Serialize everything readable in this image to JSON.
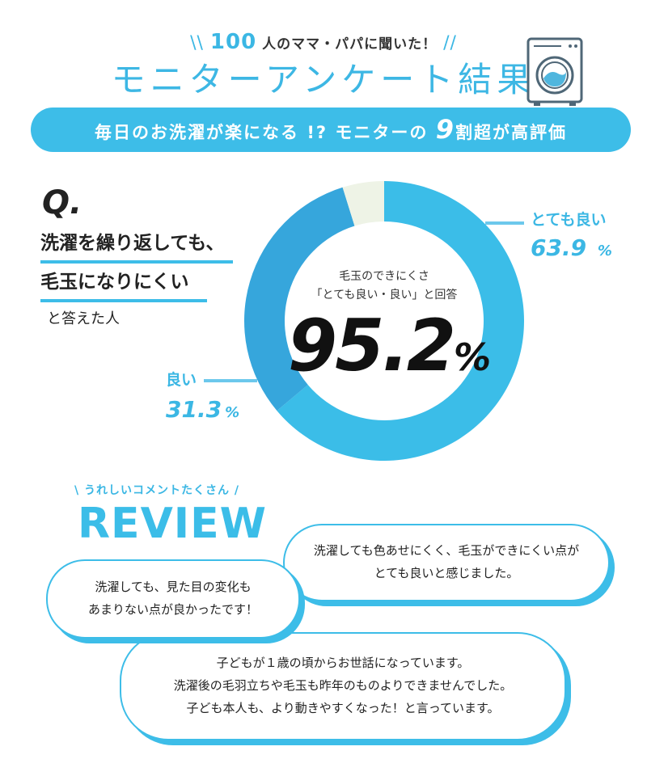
{
  "header": {
    "intro_number": "100",
    "intro_text": "人のママ・パパに聞いた！",
    "title": "モニターアンケート結果",
    "banner_pre": "毎日のお洗濯が楽になる !? モニターの",
    "banner_num": "9",
    "banner_post": "割超が高評価",
    "icon": "washing-machine-icon"
  },
  "question": {
    "q_mark": "Q.",
    "line1": "洗濯を繰り返しても、",
    "line2": "毛玉になりにくい",
    "line3": "と答えた人"
  },
  "chart_data": {
    "type": "pie",
    "donut": true,
    "categories": [
      "とても良い",
      "良い",
      ""
    ],
    "values": [
      63.9,
      31.3,
      4.8
    ],
    "colors": [
      "#3bbde8",
      "#36a6dc",
      "#eef3e6"
    ],
    "labels": [
      {
        "name": "とても良い",
        "value": "63.9",
        "unit": "%"
      },
      {
        "name": "良い",
        "value": "31.3",
        "unit": "%"
      }
    ],
    "center": {
      "line1": "毛玉のできにくさ",
      "line2": "「とても良い・良い」と回答",
      "value": "95.2",
      "unit": "%"
    }
  },
  "review": {
    "subtitle": "\\ うれしいコメントたくさん /",
    "title": "REVIEW",
    "comments": [
      {
        "line1": "洗濯しても色あせにくく、毛玉ができにくい点が",
        "line2": "とても良いと感じました。"
      },
      {
        "line1": "洗濯しても、見た目の変化も",
        "line2": "あまりない点が良かったです！"
      },
      {
        "line1": "子どもが１歳の頃からお世話になっています。",
        "line2": "洗濯後の毛羽立ちや毛玉も昨年のものよりできませんでした。",
        "line3": "子ども本人も、より動きやすくなった！と言っています。"
      }
    ]
  }
}
